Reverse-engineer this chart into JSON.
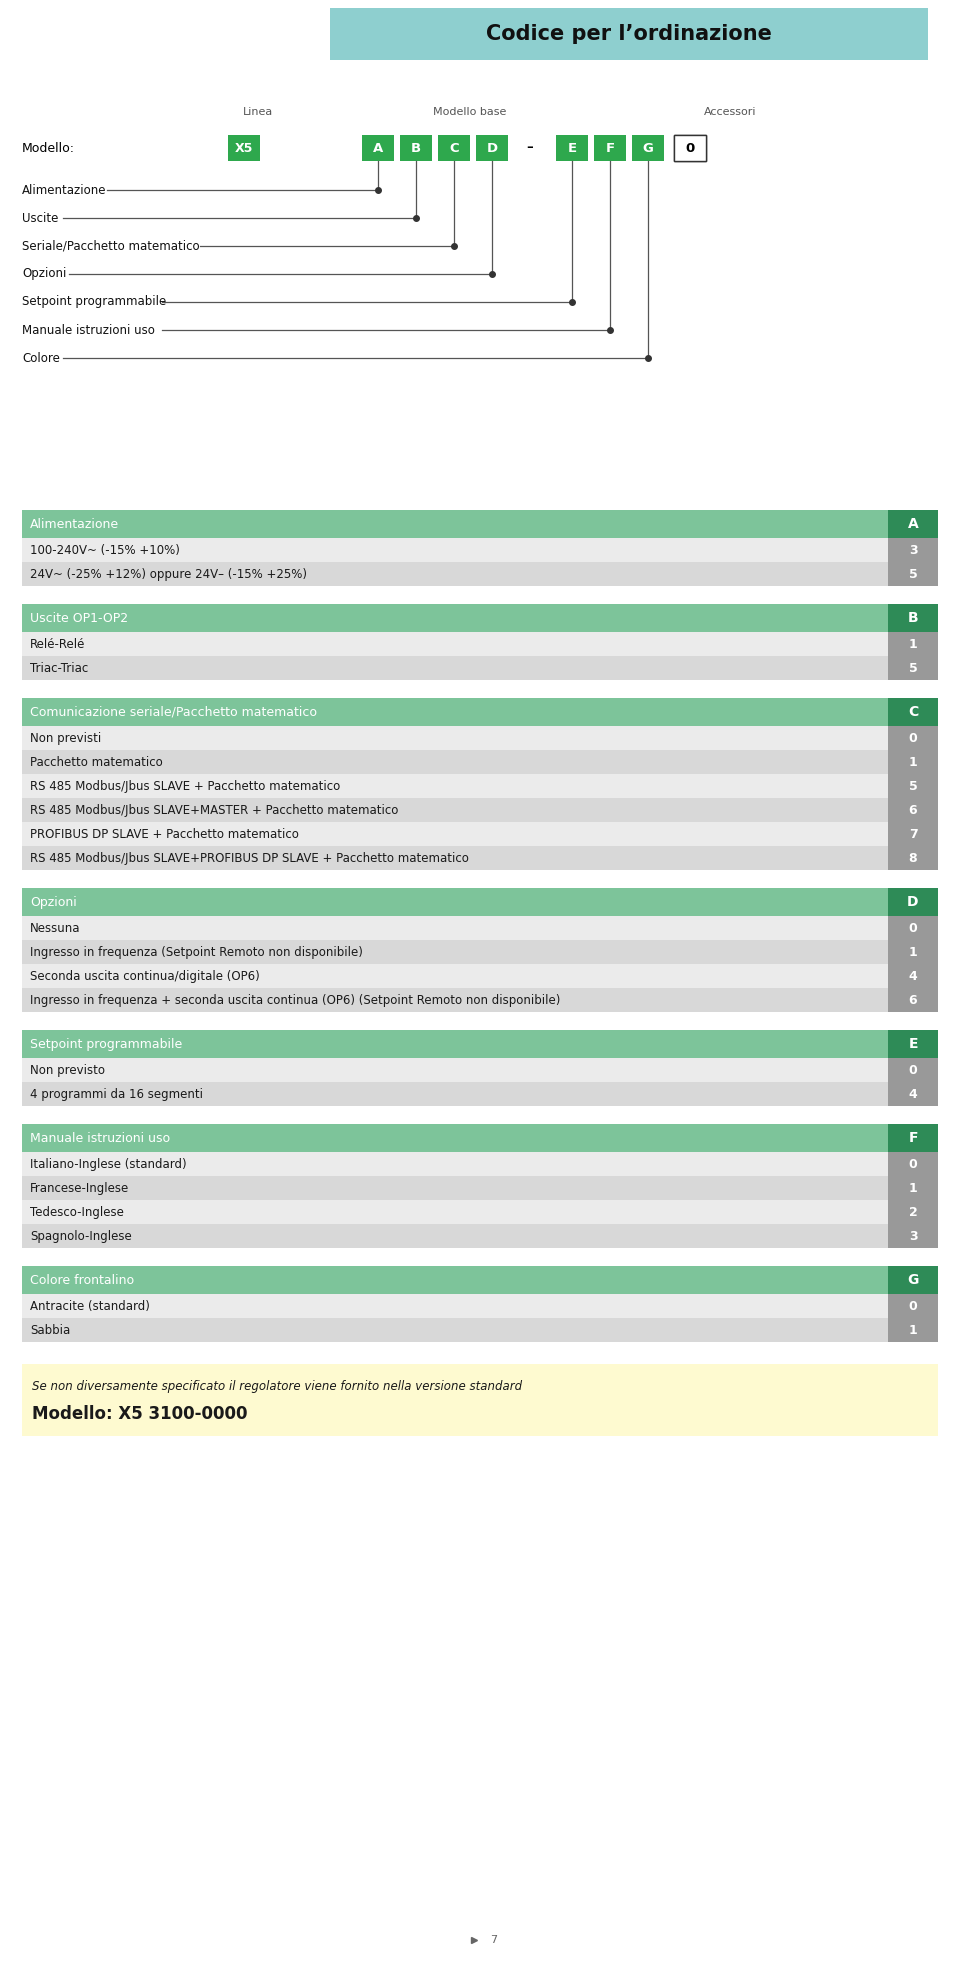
{
  "title": "Codice per l’ordinazione",
  "title_bg": "#8ecfcf",
  "title_color": "#1a1a1a",
  "page_bg": "#ffffff",
  "model_label": "Modello:",
  "model_code": "X5",
  "linea_label": "Linea",
  "modello_base_label": "Modello base",
  "accessori_label": "Accessori",
  "wiring_labels": [
    "Alimentazione",
    "Uscite",
    "Seriale/Pacchetto matematico",
    "Opzioni",
    "Setpoint programmabile",
    "Manuale istruzioni uso",
    "Colore"
  ],
  "sections": [
    {
      "header": "Alimentazione",
      "header_code": "A",
      "header_bg": "#7dc49a",
      "header_code_bg": "#2e8b57",
      "rows": [
        {
          "label": "100-240V~ (-15% +10%)",
          "value": "3",
          "bg": "#ebebeb"
        },
        {
          "label": "24V~ (-25% +12%) oppure 24V– (-15% +25%)",
          "value": "5",
          "bg": "#d8d8d8"
        }
      ]
    },
    {
      "header": "Uscite OP1-OP2",
      "header_code": "B",
      "header_bg": "#7dc49a",
      "header_code_bg": "#2e8b57",
      "rows": [
        {
          "label": "Relé-Relé",
          "value": "1",
          "bg": "#ebebeb"
        },
        {
          "label": "Triac-Triac",
          "value": "5",
          "bg": "#d8d8d8"
        }
      ]
    },
    {
      "header": "Comunicazione seriale/Pacchetto matematico",
      "header_code": "C",
      "header_bg": "#7dc49a",
      "header_code_bg": "#2e8b57",
      "rows": [
        {
          "label": "Non previsti",
          "value": "0",
          "bg": "#ebebeb"
        },
        {
          "label": "Pacchetto matematico",
          "value": "1",
          "bg": "#d8d8d8"
        },
        {
          "label": "RS 485 Modbus/Jbus SLAVE + Pacchetto matematico",
          "value": "5",
          "bg": "#ebebeb"
        },
        {
          "label": "RS 485 Modbus/Jbus SLAVE+MASTER + Pacchetto matematico",
          "value": "6",
          "bg": "#d8d8d8"
        },
        {
          "label": "PROFIBUS DP SLAVE + Pacchetto matematico",
          "value": "7",
          "bg": "#ebebeb"
        },
        {
          "label": "RS 485 Modbus/Jbus SLAVE+PROFIBUS DP SLAVE + Pacchetto matematico",
          "value": "8",
          "bg": "#d8d8d8"
        }
      ]
    },
    {
      "header": "Opzioni",
      "header_code": "D",
      "header_bg": "#7dc49a",
      "header_code_bg": "#2e8b57",
      "rows": [
        {
          "label": "Nessuna",
          "value": "0",
          "bg": "#ebebeb"
        },
        {
          "label": "Ingresso in frequenza (Setpoint Remoto non disponibile)",
          "value": "1",
          "bg": "#d8d8d8"
        },
        {
          "label": "Seconda uscita continua/digitale (OP6)",
          "value": "4",
          "bg": "#ebebeb"
        },
        {
          "label": "Ingresso in frequenza + seconda uscita continua (OP6) (Setpoint Remoto non disponibile)",
          "value": "6",
          "bg": "#d8d8d8"
        }
      ]
    },
    {
      "header": "Setpoint programmabile",
      "header_code": "E",
      "header_bg": "#7dc49a",
      "header_code_bg": "#2e8b57",
      "rows": [
        {
          "label": "Non previsto",
          "value": "0",
          "bg": "#ebebeb"
        },
        {
          "label": "4 programmi da 16 segmenti",
          "value": "4",
          "bg": "#d8d8d8"
        }
      ]
    },
    {
      "header": "Manuale istruzioni uso",
      "header_code": "F",
      "header_bg": "#7dc49a",
      "header_code_bg": "#2e8b57",
      "rows": [
        {
          "label": "Italiano-Inglese (standard)",
          "value": "0",
          "bg": "#ebebeb"
        },
        {
          "label": "Francese-Inglese",
          "value": "1",
          "bg": "#d8d8d8"
        },
        {
          "label": "Tedesco-Inglese",
          "value": "2",
          "bg": "#ebebeb"
        },
        {
          "label": "Spagnolo-Inglese",
          "value": "3",
          "bg": "#d8d8d8"
        }
      ]
    },
    {
      "header": "Colore frontalino",
      "header_code": "G",
      "header_bg": "#7dc49a",
      "header_code_bg": "#2e8b57",
      "rows": [
        {
          "label": "Antracite (standard)",
          "value": "0",
          "bg": "#ebebeb"
        },
        {
          "label": "Sabbia",
          "value": "1",
          "bg": "#d8d8d8"
        }
      ]
    }
  ],
  "footer_bg": "#fefad0",
  "footer_line1": "Se non diversamente specificato il regolatore viene fornito nella versione standard",
  "footer_line2": "Modello: X5 3100-0000",
  "page_number": "7"
}
